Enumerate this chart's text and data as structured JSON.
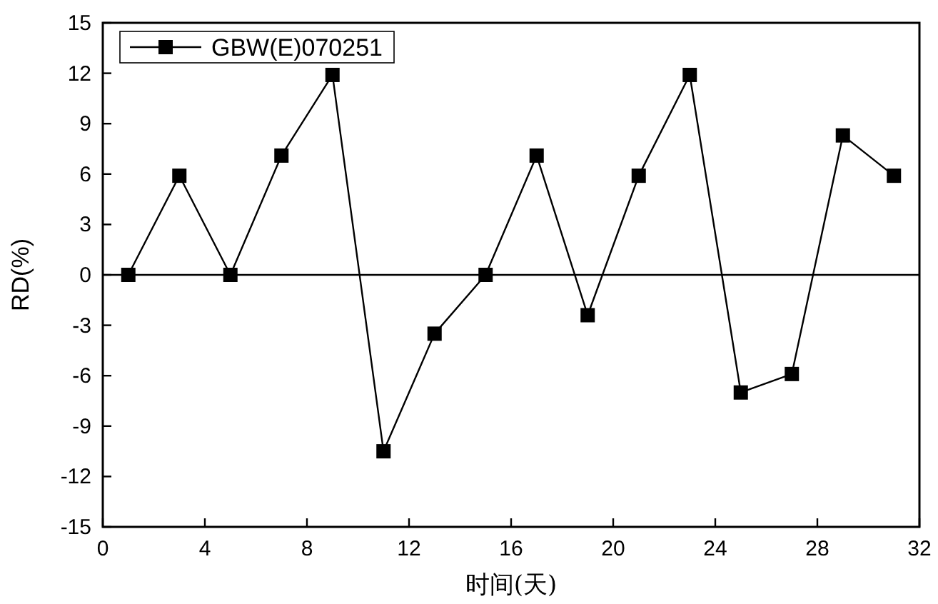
{
  "chart_data": {
    "type": "line",
    "xlabel": "时间(天)",
    "ylabel": "RD(%)",
    "x": [
      1,
      3,
      5,
      7,
      9,
      11,
      13,
      15,
      17,
      19,
      21,
      23,
      25,
      27,
      29,
      31
    ],
    "series": [
      {
        "name": "GBW(E)070251",
        "color": "#000000",
        "values": [
          0,
          5.9,
          0,
          7.1,
          11.9,
          -10.5,
          -3.5,
          0,
          7.1,
          -2.4,
          5.9,
          11.9,
          -7.0,
          -5.9,
          8.3,
          5.9
        ]
      }
    ],
    "xlim": [
      0,
      32
    ],
    "xticks": [
      0,
      4,
      8,
      12,
      16,
      20,
      24,
      28,
      32
    ],
    "ylim": [
      -15,
      15
    ],
    "yticks": [
      -15,
      -12,
      -9,
      -6,
      -3,
      0,
      3,
      6,
      9,
      12,
      15
    ],
    "ref_lines": [
      {
        "axis": "y",
        "value": 0,
        "color": "#000000"
      }
    ],
    "marker": "square",
    "line_style": "solid",
    "legend": "top left",
    "grid": false
  }
}
